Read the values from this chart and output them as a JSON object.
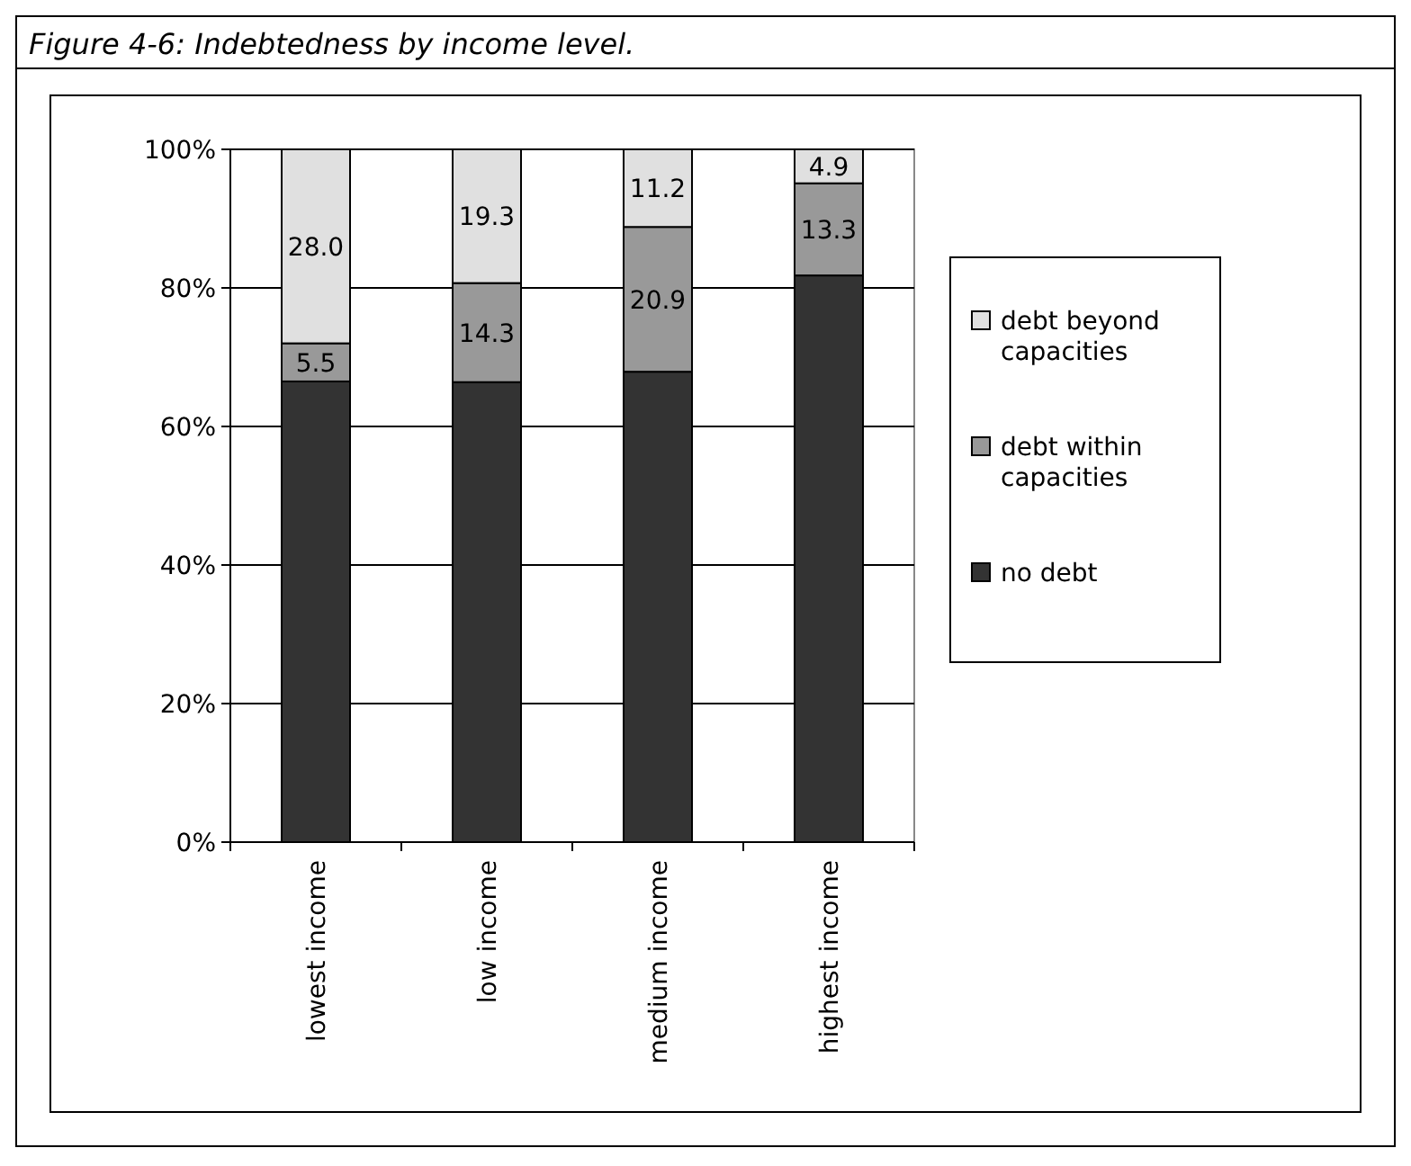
{
  "chart_data": {
    "type": "bar",
    "title": "Figure 4-6: Indebtedness by income level.",
    "stacked": true,
    "categories": [
      "lowest income",
      "low income",
      "medium income",
      "highest income"
    ],
    "series": [
      {
        "name": "no debt",
        "color": "#333333",
        "values": [
          66.5,
          66.4,
          67.9,
          81.8
        ],
        "value_labels": [
          null,
          null,
          null,
          null
        ]
      },
      {
        "name": "debt within capacities",
        "color": "#999999",
        "values": [
          5.5,
          14.3,
          20.9,
          13.3
        ],
        "value_labels": [
          "5.5",
          "14.3",
          "20.9",
          "13.3"
        ]
      },
      {
        "name": "debt beyond capacities",
        "color": "#e0e0e0",
        "values": [
          28.0,
          19.3,
          11.2,
          4.9
        ],
        "value_labels": [
          "28.0",
          "19.3",
          "11.2",
          "4.9"
        ]
      }
    ],
    "ylim": [
      0,
      100
    ],
    "yticks": [
      {
        "value": 0,
        "label": "0%"
      },
      {
        "value": 20,
        "label": "20%"
      },
      {
        "value": 40,
        "label": "40%"
      },
      {
        "value": 60,
        "label": "60%"
      },
      {
        "value": 80,
        "label": "80%"
      },
      {
        "value": 100,
        "label": "100%"
      }
    ],
    "grid": "y",
    "legend": "right"
  }
}
